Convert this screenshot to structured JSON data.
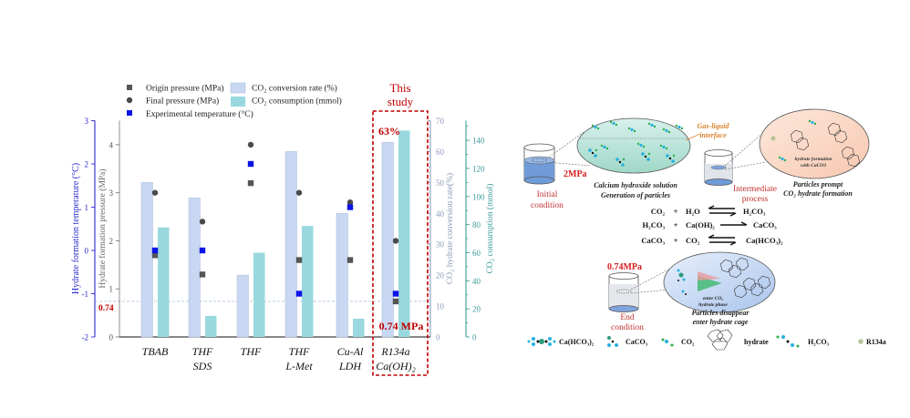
{
  "chart_data": {
    "type": "bar",
    "categories": [
      [
        "TBAB"
      ],
      [
        "THF",
        "SDS"
      ],
      [
        "THF"
      ],
      [
        "THF",
        "L-Met"
      ],
      [
        "Cu-Al",
        "LDH"
      ],
      [
        "R134a",
        "Ca(OH)₂"
      ]
    ],
    "legend": {
      "origin_pressure": "Origin pressure (MPa)",
      "final_pressure": "Final pressure (MPa)",
      "experimental_temperature": "Experimental temperature (°C)",
      "conversion_rate": "CO₂ conversion rate (%)",
      "consumption": "CO₂ consumption (mmol)"
    },
    "axes": {
      "temperature": {
        "label": "Hydrate formation temperature (°C)",
        "range": [
          -2,
          3
        ],
        "ticks": [
          "-2",
          "-1",
          "0",
          "1",
          "2",
          "3"
        ],
        "color": "#2a2ad0"
      },
      "pressure": {
        "label": "Hydrate formation pressure (MPa)",
        "range": [
          0,
          4.5
        ],
        "ticks": [
          "0",
          "1",
          "2",
          "3",
          "4"
        ],
        "color": "#777777"
      },
      "conversion": {
        "label": "CO₂ hydrate conversion rate(%)",
        "range": [
          0,
          70
        ],
        "ticks": [
          "0",
          "10",
          "20",
          "30",
          "40",
          "50",
          "60",
          "70"
        ],
        "color": "#8a9ab8"
      },
      "consumption": {
        "label": "CO₂ consumption (mmol)",
        "range": [
          0,
          154
        ],
        "ticks": [
          "0",
          "20",
          "40",
          "60",
          "80",
          "100",
          "120",
          "140"
        ],
        "color": "#3a9a9a"
      }
    },
    "series": [
      {
        "name": "CO₂ conversion rate (%)",
        "type": "bar",
        "axis": "conversion",
        "color": "#c9d8f2",
        "values": [
          50,
          45,
          20,
          60,
          40,
          63
        ]
      },
      {
        "name": "CO₂ consumption (mmol)",
        "type": "bar",
        "axis": "consumption",
        "color": "#99d8de",
        "values": [
          78,
          15,
          60,
          79,
          13,
          147
        ]
      },
      {
        "name": "Origin pressure (MPa)",
        "type": "scatter",
        "marker": "square",
        "axis": "pressure",
        "color": "#555555",
        "values": [
          1.7,
          1.3,
          3.2,
          1.6,
          1.6,
          0.74
        ]
      },
      {
        "name": "Final pressure (MPa)",
        "type": "scatter",
        "marker": "circle",
        "axis": "pressure",
        "color": "#4a4a4a",
        "values": [
          3.0,
          2.4,
          4.0,
          3.0,
          2.8,
          2.0
        ]
      },
      {
        "name": "Experimental temperature (°C)",
        "type": "scatter",
        "marker": "square",
        "axis": "temperature",
        "color": "#0a14e6",
        "values": [
          0,
          0,
          2.0,
          -1.0,
          1.0,
          -1.0
        ]
      }
    ],
    "reference_line": {
      "axis": "pressure",
      "value": 0.74,
      "label": "0.74"
    },
    "highlight": {
      "title_line1": "This",
      "title_line2": "study",
      "percent_label": "63%",
      "pressure_label": "0.74 MPa",
      "color": "#c00000"
    },
    "grid": false
  },
  "diagram": {
    "initial_label_1": "Initial",
    "initial_label_2": "condition",
    "pressure_start": "2MPa",
    "solution_1": "Calcium hydroxide solution",
    "solution_2": "Generation of particles",
    "interface_1": "Gas-liquid",
    "interface_2": "interface",
    "intermediate_1": "Intermediate",
    "intermediate_2": "process",
    "prompt_1": "Particles prompt",
    "prompt_2": "CO₂ hydrate formation",
    "inset_formation_1": "hydrate formation",
    "inset_formation_2": "with CaCO3",
    "equations": [
      {
        "left": "CO₂",
        "plus": "+",
        "right": "H₂O",
        "product": "H₂CO₃",
        "reversible": true
      },
      {
        "left": "H₂CO₃",
        "plus": "+",
        "right": "Ca(OH)₂",
        "product": "CaCO₃",
        "reversible": false
      },
      {
        "left": "CaCO₃",
        "plus": "+",
        "right": "CO₂",
        "product": "Ca(HCO₃)₂",
        "reversible": true
      }
    ],
    "pressure_end": "0.74MPa",
    "end_label_1": "End",
    "end_label_2": "condition",
    "enter_1": "enter CO₂",
    "enter_2": "hydrate phase",
    "disappear_1": "Particles disappear",
    "disappear_2": "enter hydrate cage",
    "legend": [
      "Ca(HCO₃)₂",
      "CaCO₃",
      "CO₂",
      "hydrate",
      "H₂CO₃",
      "R134a"
    ]
  }
}
